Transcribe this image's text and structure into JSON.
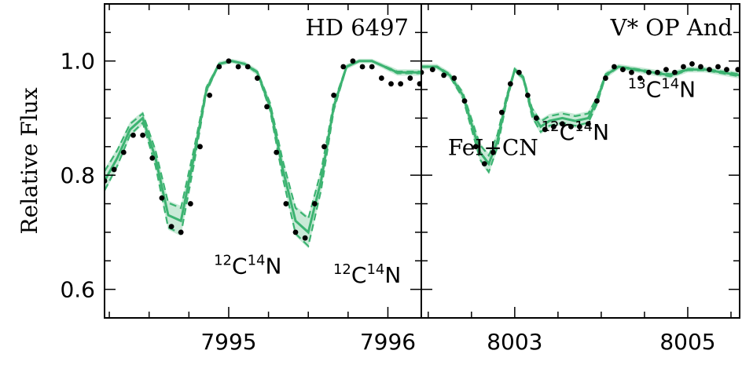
{
  "chart_data": [
    {
      "type": "line",
      "title": "HD 6497",
      "ylabel": "Relative Flux",
      "xlim": [
        7994.22,
        7996.21
      ],
      "ylim": [
        0.55,
        1.1
      ],
      "x_ticks": [
        7995,
        7996
      ],
      "x_tick_labels": [
        "7995",
        "7996"
      ],
      "y_ticks": [
        0.6,
        0.8,
        1.0
      ],
      "y_tick_labels": [
        "0.6",
        "0.8",
        "1.0"
      ],
      "annotations": [
        {
          "iso_mass": "12",
          "element": "C",
          "iso_mass2": "14",
          "element2": "N",
          "x": 7995.12,
          "y": 0.628
        },
        {
          "iso_mass": "12",
          "element": "C",
          "iso_mass2": "14",
          "element2": "N",
          "x": 7995.87,
          "y": 0.612
        }
      ],
      "series": [
        {
          "style": "observed",
          "x": [
            7994.22,
            7994.28,
            7994.34,
            7994.4,
            7994.46,
            7994.52,
            7994.58,
            7994.64,
            7994.7,
            7994.76,
            7994.82,
            7994.88,
            7994.94,
            7995.0,
            7995.06,
            7995.12,
            7995.18,
            7995.24,
            7995.3,
            7995.36,
            7995.42,
            7995.48,
            7995.54,
            7995.6,
            7995.66,
            7995.72,
            7995.78,
            7995.84,
            7995.9,
            7995.96,
            7996.02,
            7996.08,
            7996.14,
            7996.2
          ],
          "y": [
            0.79,
            0.81,
            0.84,
            0.87,
            0.87,
            0.83,
            0.76,
            0.71,
            0.7,
            0.75,
            0.85,
            0.94,
            0.99,
            1.0,
            0.99,
            0.99,
            0.97,
            0.92,
            0.84,
            0.75,
            0.7,
            0.69,
            0.75,
            0.85,
            0.94,
            0.99,
            1.0,
            0.99,
            0.99,
            0.97,
            0.96,
            0.96,
            0.97,
            0.96
          ]
        },
        {
          "style": "model",
          "x": [
            7994.22,
            7994.3,
            7994.38,
            7994.46,
            7994.54,
            7994.62,
            7994.7,
            7994.78,
            7994.86,
            7994.94,
            7995.02,
            7995.1,
            7995.18,
            7995.26,
            7995.34,
            7995.42,
            7995.5,
            7995.58,
            7995.66,
            7995.74,
            7995.82,
            7995.9,
            7995.98,
            7996.06,
            7996.14,
            7996.21
          ],
          "y": [
            0.79,
            0.83,
            0.88,
            0.9,
            0.83,
            0.73,
            0.72,
            0.83,
            0.95,
            0.995,
            1.0,
            0.995,
            0.98,
            0.92,
            0.81,
            0.72,
            0.7,
            0.79,
            0.92,
            0.99,
            1.0,
            1.0,
            0.99,
            0.98,
            0.98,
            0.98
          ]
        }
      ]
    },
    {
      "type": "line",
      "title": "V* OP And",
      "xlim": [
        8001.92,
        8005.6
      ],
      "ylim": [
        0.55,
        1.1
      ],
      "x_ticks": [
        8003,
        8005
      ],
      "x_tick_labels": [
        "8003",
        "8005"
      ],
      "annotations": [
        {
          "text": "FeI+CN",
          "x": 8002.75,
          "y": 0.835
        },
        {
          "iso_mass": "12",
          "element": "C",
          "iso_mass2": "14",
          "element2": "N",
          "x": 8003.7,
          "y": 0.862
        },
        {
          "iso_mass": "13",
          "element": "C",
          "iso_mass2": "14",
          "element2": "N",
          "x": 8004.7,
          "y": 0.937
        }
      ],
      "series": [
        {
          "style": "observed",
          "x": [
            8001.92,
            8002.05,
            8002.18,
            8002.3,
            8002.42,
            8002.55,
            8002.65,
            8002.75,
            8002.85,
            8002.95,
            8003.05,
            8003.15,
            8003.25,
            8003.35,
            8003.45,
            8003.55,
            8003.65,
            8003.75,
            8003.85,
            8003.95,
            8004.05,
            8004.15,
            8004.25,
            8004.35,
            8004.45,
            8004.55,
            8004.65,
            8004.75,
            8004.85,
            8004.95,
            8005.05,
            8005.15,
            8005.25,
            8005.35,
            8005.45,
            8005.58
          ],
          "y": [
            0.98,
            0.985,
            0.975,
            0.97,
            0.93,
            0.85,
            0.82,
            0.84,
            0.91,
            0.96,
            0.98,
            0.94,
            0.9,
            0.88,
            0.885,
            0.89,
            0.885,
            0.885,
            0.89,
            0.93,
            0.97,
            0.99,
            0.985,
            0.98,
            0.97,
            0.98,
            0.98,
            0.985,
            0.98,
            0.99,
            0.995,
            0.99,
            0.985,
            0.99,
            0.985,
            0.985
          ]
        },
        {
          "style": "model",
          "x": [
            8001.92,
            8002.1,
            8002.25,
            8002.4,
            8002.5,
            8002.6,
            8002.7,
            8002.8,
            8002.9,
            8003.0,
            8003.1,
            8003.2,
            8003.3,
            8003.4,
            8003.55,
            8003.7,
            8003.85,
            8003.95,
            8004.05,
            8004.2,
            8004.4,
            8004.6,
            8004.8,
            8005.0,
            8005.2,
            8005.4,
            8005.6
          ],
          "y": [
            0.99,
            0.99,
            0.975,
            0.94,
            0.89,
            0.84,
            0.82,
            0.86,
            0.93,
            0.985,
            0.97,
            0.91,
            0.885,
            0.895,
            0.9,
            0.895,
            0.9,
            0.93,
            0.975,
            0.99,
            0.985,
            0.98,
            0.975,
            0.985,
            0.985,
            0.98,
            0.975
          ]
        }
      ]
    }
  ]
}
